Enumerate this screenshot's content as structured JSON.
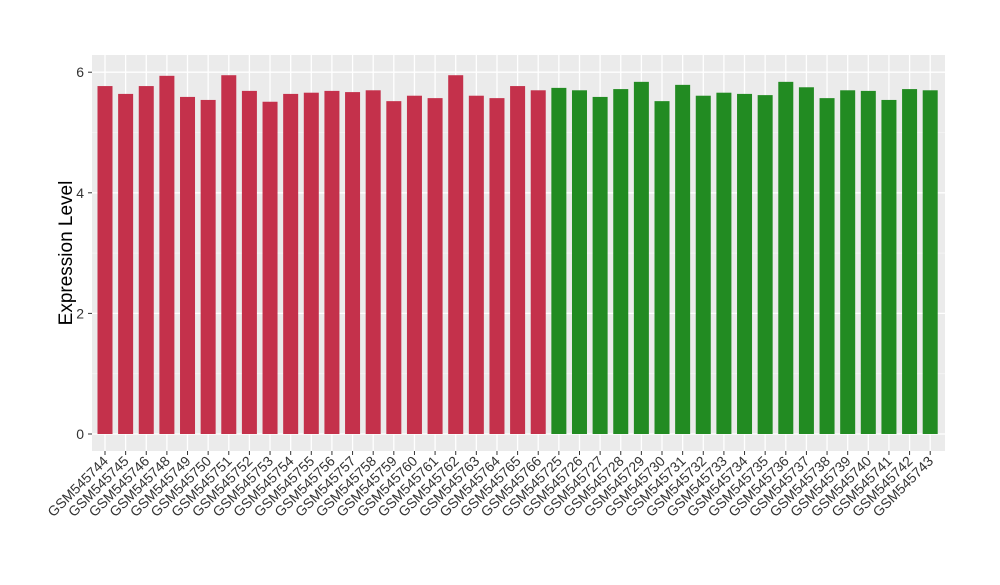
{
  "chart_data": {
    "type": "bar",
    "title": "",
    "xlabel": "",
    "ylabel": "Expression Level",
    "ylim": [
      0,
      6.3
    ],
    "yticks": [
      0,
      2,
      4,
      6
    ],
    "grid": true,
    "legend": "none",
    "categories": [
      "GSM545744",
      "GSM545745",
      "GSM545746",
      "GSM545748",
      "GSM545749",
      "GSM545750",
      "GSM545751",
      "GSM545752",
      "GSM545753",
      "GSM545754",
      "GSM545755",
      "GSM545756",
      "GSM545757",
      "GSM545758",
      "GSM545759",
      "GSM545760",
      "GSM545761",
      "GSM545762",
      "GSM545763",
      "GSM545764",
      "GSM545765",
      "GSM545766",
      "GSM545725",
      "GSM545726",
      "GSM545727",
      "GSM545728",
      "GSM545729",
      "GSM545730",
      "GSM545731",
      "GSM545732",
      "GSM545733",
      "GSM545734",
      "GSM545735",
      "GSM545736",
      "GSM545737",
      "GSM545738",
      "GSM545739",
      "GSM545740",
      "GSM545741",
      "GSM545742",
      "GSM545743"
    ],
    "values": [
      5.77,
      5.64,
      5.77,
      5.94,
      5.59,
      5.54,
      5.95,
      5.69,
      5.51,
      5.64,
      5.66,
      5.69,
      5.67,
      5.7,
      5.52,
      5.61,
      5.57,
      5.95,
      5.61,
      5.57,
      5.77,
      5.7,
      5.74,
      5.7,
      5.59,
      5.72,
      5.84,
      5.52,
      5.79,
      5.61,
      5.66,
      5.64,
      5.62,
      5.84,
      5.75,
      5.57,
      5.7,
      5.69,
      5.54,
      5.72,
      5.7
    ],
    "groups": [
      22,
      19
    ],
    "colors": [
      "#C4314B",
      "#228B22"
    ],
    "panel_color": "#EBEBEB"
  }
}
